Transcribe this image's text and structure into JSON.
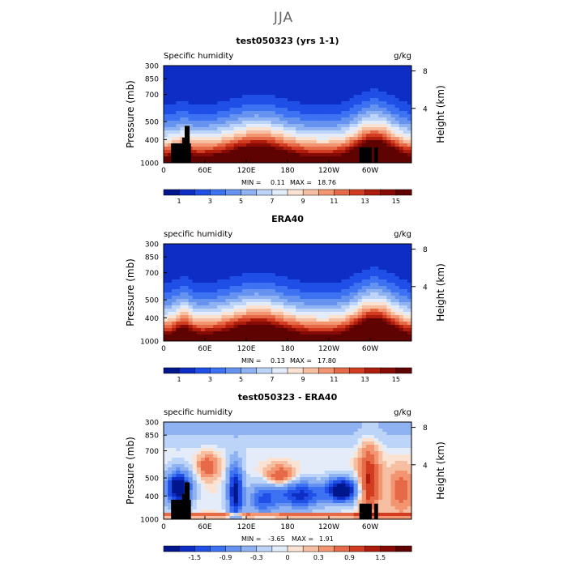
{
  "figure": {
    "title": "JJA"
  },
  "chart_data": [
    {
      "type": "heatmap",
      "title": "test050323 (yrs 1-1)",
      "left_label": "Specific humidity",
      "right_label": "g/kg",
      "ylabel": "Pressure (mb)",
      "y2label": "Height (km)",
      "yticks": [
        "300",
        "400",
        "500",
        "700",
        "850",
        "1000"
      ],
      "y2ticks": [
        "8",
        "4"
      ],
      "xticks": [
        "0",
        "60E",
        "120E",
        "180",
        "120W",
        "60W"
      ],
      "stats": {
        "min_label": "MIN =",
        "min": "0.11",
        "max_label": "MAX =",
        "max": "18.76"
      },
      "colorbar_labels": [
        "1",
        "3",
        "5",
        "7",
        "9",
        "11",
        "13",
        "15"
      ],
      "colors": [
        "#00168c",
        "#0d2dc4",
        "#1f4fe6",
        "#3d72f2",
        "#6593ef",
        "#8fb3f2",
        "#bcd4f7",
        "#e3ecf8",
        "#fbe3d4",
        "#f7bfa2",
        "#f29570",
        "#e66a47",
        "#d23d22",
        "#ae1c0c",
        "#870b05",
        "#5e0202"
      ]
    },
    {
      "type": "heatmap",
      "title": "ERA40",
      "left_label": "specific humidity",
      "right_label": "g/kg",
      "ylabel": "Pressure (mb)",
      "y2label": "Height (km)",
      "yticks": [
        "300",
        "400",
        "500",
        "700",
        "850",
        "1000"
      ],
      "y2ticks": [
        "8",
        "4"
      ],
      "xticks": [
        "0",
        "60E",
        "120E",
        "180",
        "120W",
        "60W"
      ],
      "stats": {
        "min_label": "MIN =",
        "min": "0.13",
        "max_label": "MAX =",
        "max": "17.80"
      },
      "colorbar_labels": [
        "1",
        "3",
        "5",
        "7",
        "9",
        "11",
        "13",
        "15"
      ],
      "colors": [
        "#00168c",
        "#0d2dc4",
        "#1f4fe6",
        "#3d72f2",
        "#6593ef",
        "#8fb3f2",
        "#bcd4f7",
        "#e3ecf8",
        "#fbe3d4",
        "#f7bfa2",
        "#f29570",
        "#e66a47",
        "#d23d22",
        "#ae1c0c",
        "#870b05",
        "#5e0202"
      ]
    },
    {
      "type": "heatmap",
      "title": "test050323 - ERA40",
      "left_label": "specific humidity",
      "right_label": "g/kg",
      "ylabel": "Pressure (mb)",
      "y2label": "Height (km)",
      "yticks": [
        "300",
        "400",
        "500",
        "700",
        "850",
        "1000"
      ],
      "y2ticks": [
        "8",
        "4"
      ],
      "xticks": [
        "0",
        "60E",
        "120E",
        "180",
        "120W",
        "60W"
      ],
      "stats": {
        "min_label": "MIN =",
        "min": "-3.65",
        "max_label": "MAX =",
        "max": "1.91"
      },
      "colorbar_labels": [
        "-1.5",
        "-0.9",
        "-0.3",
        "0",
        "0.3",
        "0.9",
        "1.5"
      ],
      "colors": [
        "#00168c",
        "#0d2dc4",
        "#1f4fe6",
        "#3d72f2",
        "#6593ef",
        "#8fb3f2",
        "#bcd4f7",
        "#e3ecf8",
        "#fbe3d4",
        "#f7bfa2",
        "#f29570",
        "#e66a47",
        "#d23d22",
        "#ae1c0c",
        "#870b05",
        "#5e0202"
      ]
    }
  ]
}
